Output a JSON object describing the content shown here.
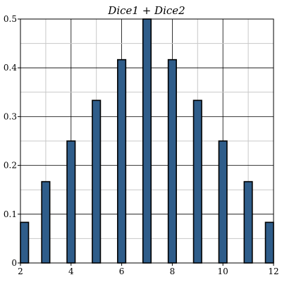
{
  "chart_data": {
    "type": "bar",
    "title": "Dice1 + Dice2",
    "xlabel": "",
    "ylabel": "",
    "x": [
      2,
      3,
      4,
      5,
      6,
      7,
      8,
      9,
      10,
      11,
      12
    ],
    "values": [
      0.0833,
      0.1667,
      0.25,
      0.3333,
      0.4167,
      0.5,
      0.4167,
      0.3333,
      0.25,
      0.1667,
      0.0833
    ],
    "xlim": [
      2,
      12
    ],
    "ylim": [
      0,
      0.5
    ],
    "xticks": [
      "2",
      "4",
      "6",
      "8",
      "10",
      "12"
    ],
    "yticks": [
      "0",
      "0.1",
      "0.2",
      "0.3",
      "0.4",
      "0.5"
    ],
    "grid": true,
    "bar_color": "#2f5d8a",
    "bar_edge_color": "#000000",
    "grid_color": "#c8c8c8"
  }
}
